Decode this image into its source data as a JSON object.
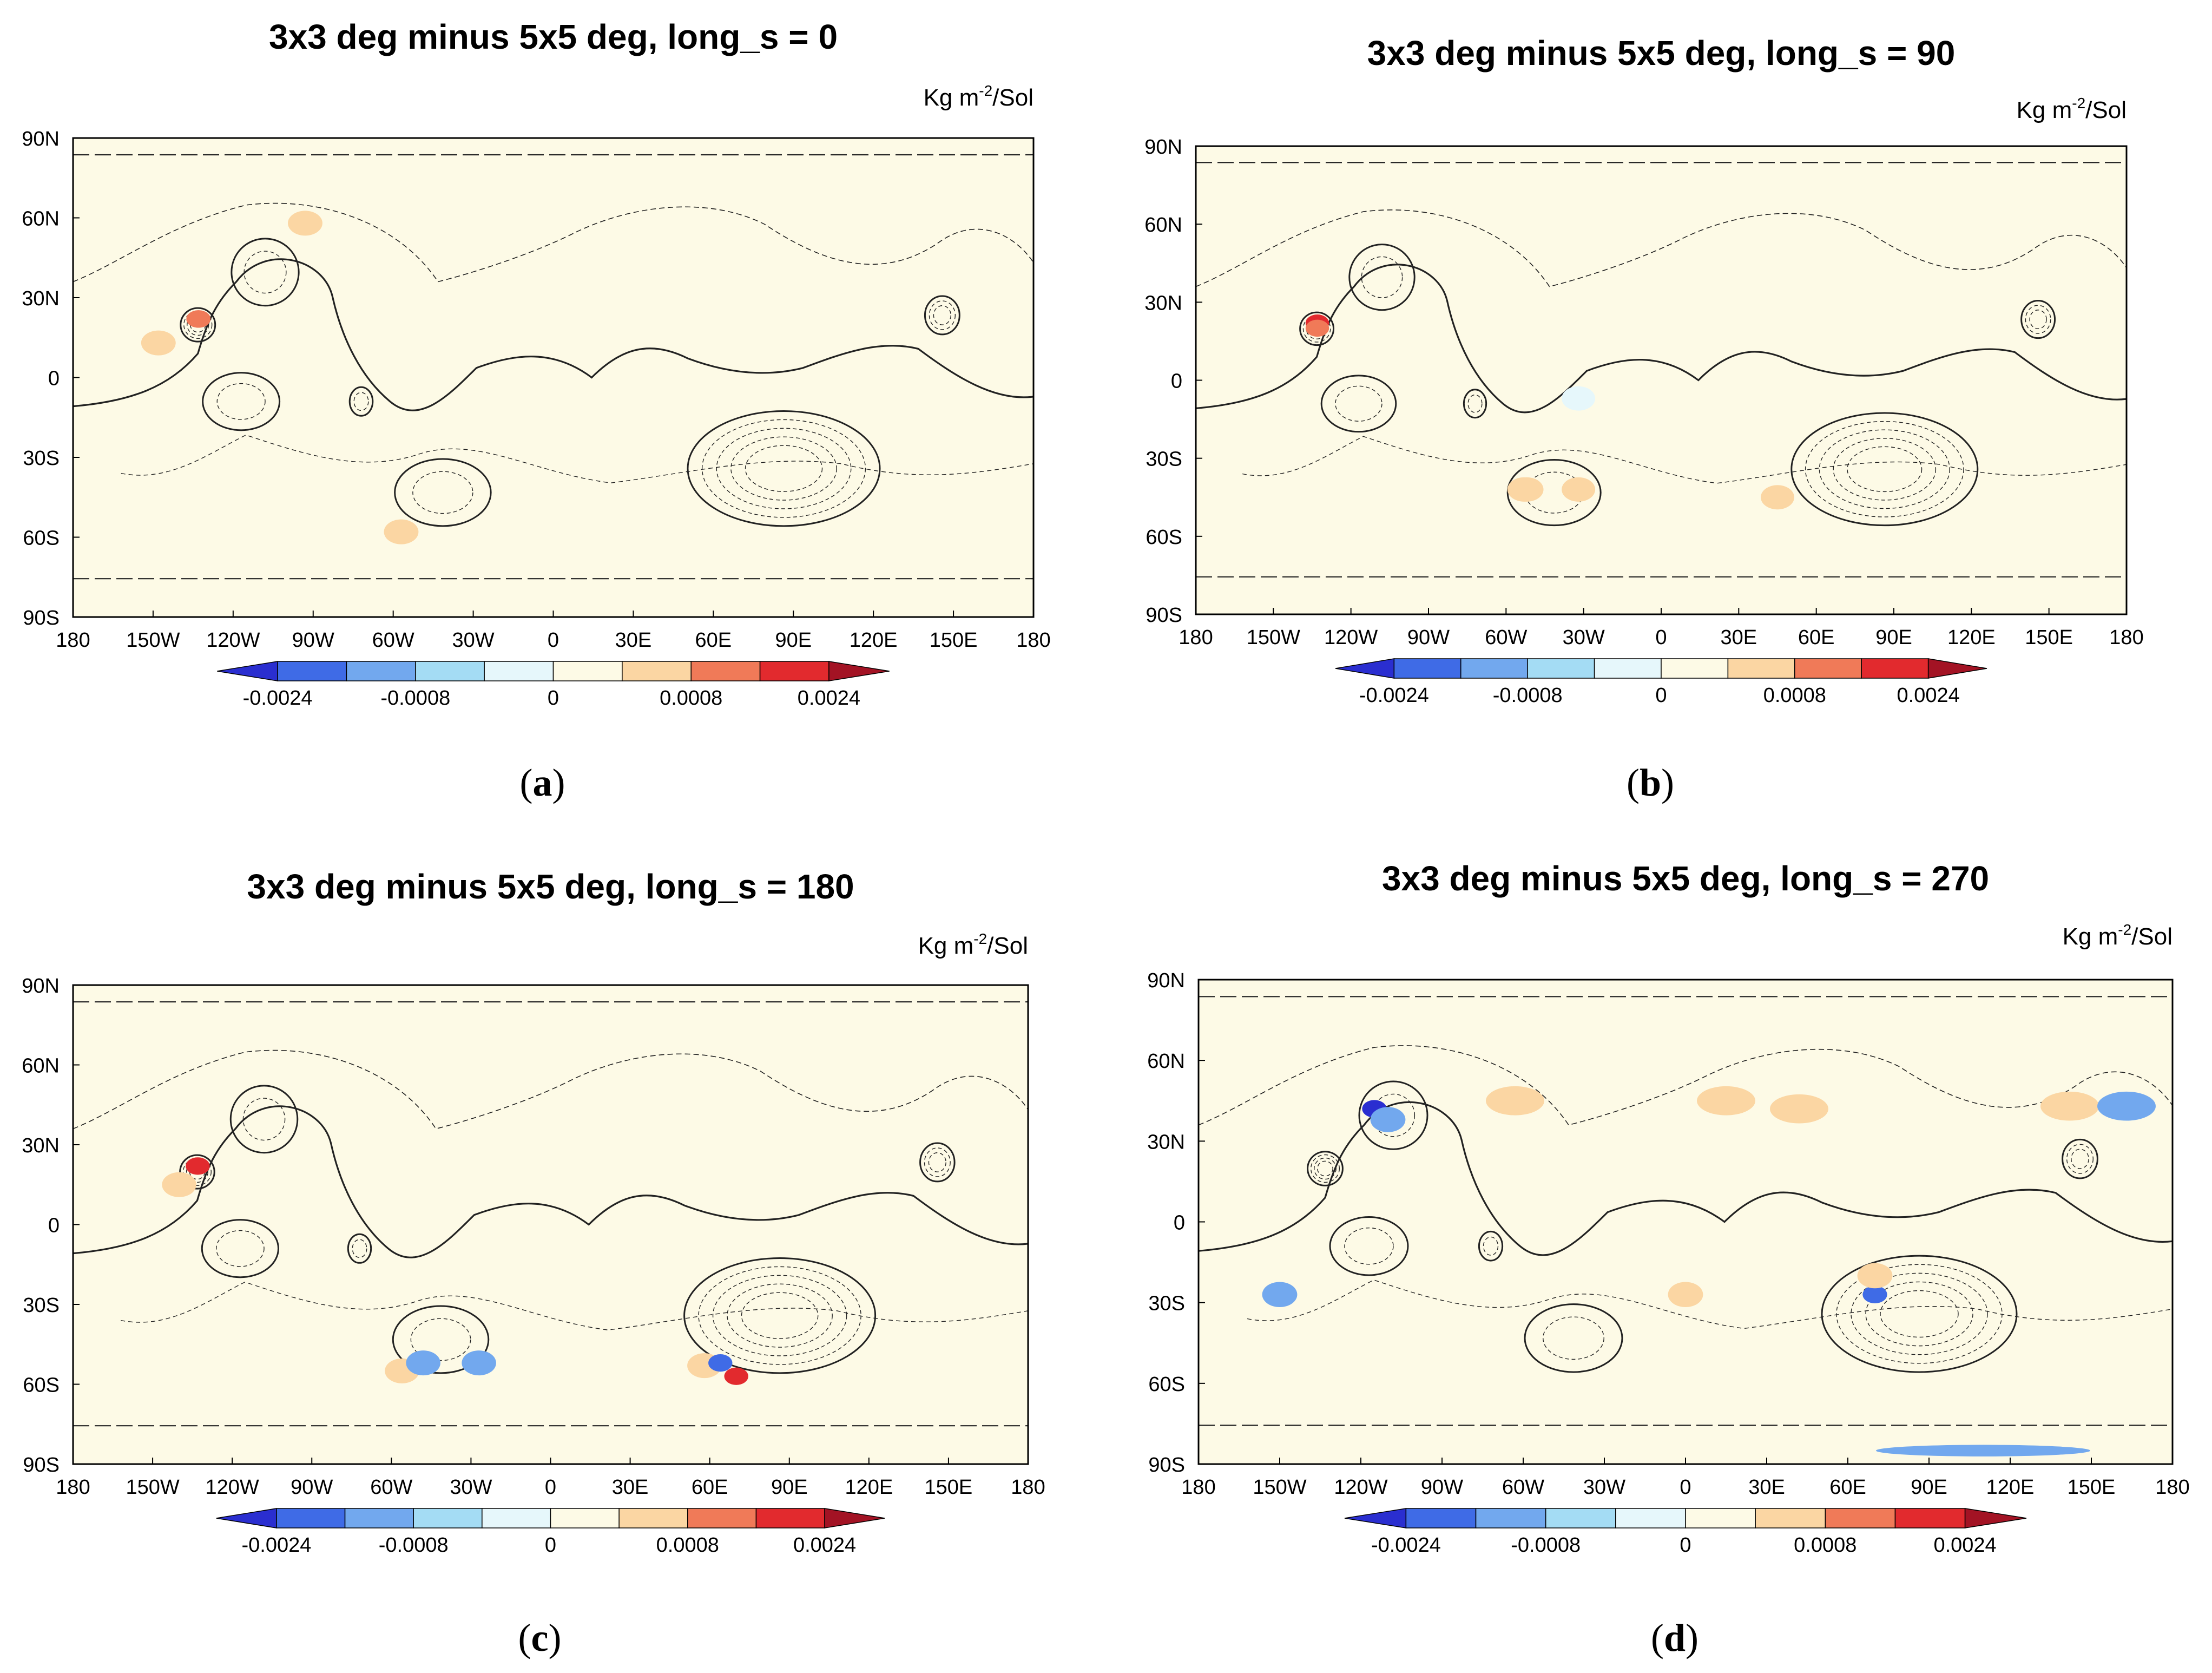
{
  "colors": {
    "background_fill": "#fdfae6",
    "bin_colors": [
      "#2a2ed0",
      "#3f6be6",
      "#72a8ee",
      "#a4dcf4",
      "#e6f7fb",
      "#fdfae6",
      "#fbd6a3",
      "#f07a58",
      "#e22a2e",
      "#a31324"
    ],
    "contour": "#222222"
  },
  "colorbar": {
    "bins": 10,
    "labels": [
      "-0.0024",
      "-0.0008",
      "0",
      "0.0008",
      "0.0024"
    ]
  },
  "axes": {
    "x_labels": [
      "180",
      "150W",
      "120W",
      "90W",
      "60W",
      "30W",
      "0",
      "30E",
      "60E",
      "90E",
      "120E",
      "150E",
      "180"
    ],
    "y_labels": [
      "90N",
      "60N",
      "30N",
      "0",
      "30S",
      "60S",
      "90S"
    ]
  },
  "unit": {
    "base": "Kg m",
    "exp": "-2",
    "tail": "/Sol"
  },
  "panels": [
    {
      "label": "a",
      "title": "3x3 deg minus 5x5 deg, long_s = 0"
    },
    {
      "label": "b",
      "title": "3x3 deg minus 5x5 deg, long_s = 90"
    },
    {
      "label": "c",
      "title": "3x3 deg minus 5x5 deg, long_s = 180"
    },
    {
      "label": "d",
      "title": "3x3 deg minus 5x5 deg, long_s = 270"
    }
  ],
  "chart_data": [
    {
      "type": "heatmap",
      "title": "3x3 deg minus 5x5 deg, long_s = 0",
      "units": "Kg m-2/Sol",
      "x_range": [
        -180,
        180
      ],
      "y_range": [
        -90,
        90
      ],
      "bin_levels": [
        -0.0024,
        -0.0016,
        -0.0008,
        -0.0004,
        0,
        0.0004,
        0.0008,
        0.0016,
        0.0024
      ],
      "anomalies": [
        {
          "lon": -133,
          "lat": 22,
          "value": 0.0024
        },
        {
          "lon": -133,
          "lat": 22,
          "value": 0.0016
        },
        {
          "lon": -148,
          "lat": 13,
          "value": 0.0006
        },
        {
          "lon": -93,
          "lat": 58,
          "value": 0.0006
        },
        {
          "lon": -57,
          "lat": -58,
          "value": 0.0006
        }
      ]
    },
    {
      "type": "heatmap",
      "title": "3x3 deg minus 5x5 deg, long_s = 90",
      "units": "Kg m-2/Sol",
      "x_range": [
        -180,
        180
      ],
      "y_range": [
        -90,
        90
      ],
      "bin_levels": [
        -0.0024,
        -0.0016,
        -0.0008,
        -0.0004,
        0,
        0.0004,
        0.0008,
        0.0016,
        0.0024
      ],
      "anomalies": [
        {
          "lon": -133,
          "lat": 22,
          "value": 0.0024
        },
        {
          "lon": -133,
          "lat": 20,
          "value": 0.0016
        },
        {
          "lon": -32,
          "lat": -42,
          "value": 0.0006
        },
        {
          "lon": -52,
          "lat": -42,
          "value": 0.0006
        },
        {
          "lon": -53,
          "lat": -42,
          "value": 0.0006
        },
        {
          "lon": 45,
          "lat": -45,
          "value": 0.0006
        },
        {
          "lon": -32,
          "lat": -7,
          "value": -0.0003
        }
      ]
    },
    {
      "type": "heatmap",
      "title": "3x3 deg minus 5x5 deg, long_s = 180",
      "units": "Kg m-2/Sol",
      "x_range": [
        -180,
        180
      ],
      "y_range": [
        -90,
        90
      ],
      "bin_levels": [
        -0.0024,
        -0.0016,
        -0.0008,
        -0.0004,
        0,
        0.0004,
        0.0008,
        0.0016,
        0.0024
      ],
      "anomalies": [
        {
          "lon": -133,
          "lat": 22,
          "value": 0.0024
        },
        {
          "lon": -140,
          "lat": 15,
          "value": 0.0006
        },
        {
          "lon": -56,
          "lat": -55,
          "value": 0.0006
        },
        {
          "lon": -48,
          "lat": -52,
          "value": -0.0008
        },
        {
          "lon": -27,
          "lat": -52,
          "value": -0.0008
        },
        {
          "lon": 58,
          "lat": -53,
          "value": 0.0006
        },
        {
          "lon": 64,
          "lat": -52,
          "value": -0.0016
        },
        {
          "lon": 70,
          "lat": -57,
          "value": 0.0024
        }
      ]
    },
    {
      "type": "heatmap",
      "title": "3x3 deg minus 5x5 deg, long_s = 270",
      "units": "Kg m-2/Sol",
      "x_range": [
        -180,
        180
      ],
      "y_range": [
        -90,
        90
      ],
      "bin_levels": [
        -0.0024,
        -0.0016,
        -0.0008,
        -0.0004,
        0,
        0.0004,
        0.0008,
        0.0016,
        0.0024
      ],
      "anomalies": [
        {
          "lon": -115,
          "lat": 42,
          "value": -0.0024
        },
        {
          "lon": -110,
          "lat": 38,
          "value": -0.0008
        },
        {
          "lon": -63,
          "lat": 45,
          "value": 0.0006
        },
        {
          "lon": 15,
          "lat": 45,
          "value": 0.0006
        },
        {
          "lon": 42,
          "lat": 42,
          "value": 0.0006
        },
        {
          "lon": 142,
          "lat": 43,
          "value": 0.0006
        },
        {
          "lon": 163,
          "lat": 43,
          "value": -0.0008
        },
        {
          "lon": -150,
          "lat": -27,
          "value": -0.0008
        },
        {
          "lon": 0,
          "lat": -27,
          "value": 0.0006
        },
        {
          "lon": 70,
          "lat": -27,
          "value": -0.0016
        },
        {
          "lon": 70,
          "lat": -20,
          "value": 0.0006
        },
        {
          "lon": 110,
          "lat": -85,
          "value": -0.0008
        }
      ]
    }
  ]
}
